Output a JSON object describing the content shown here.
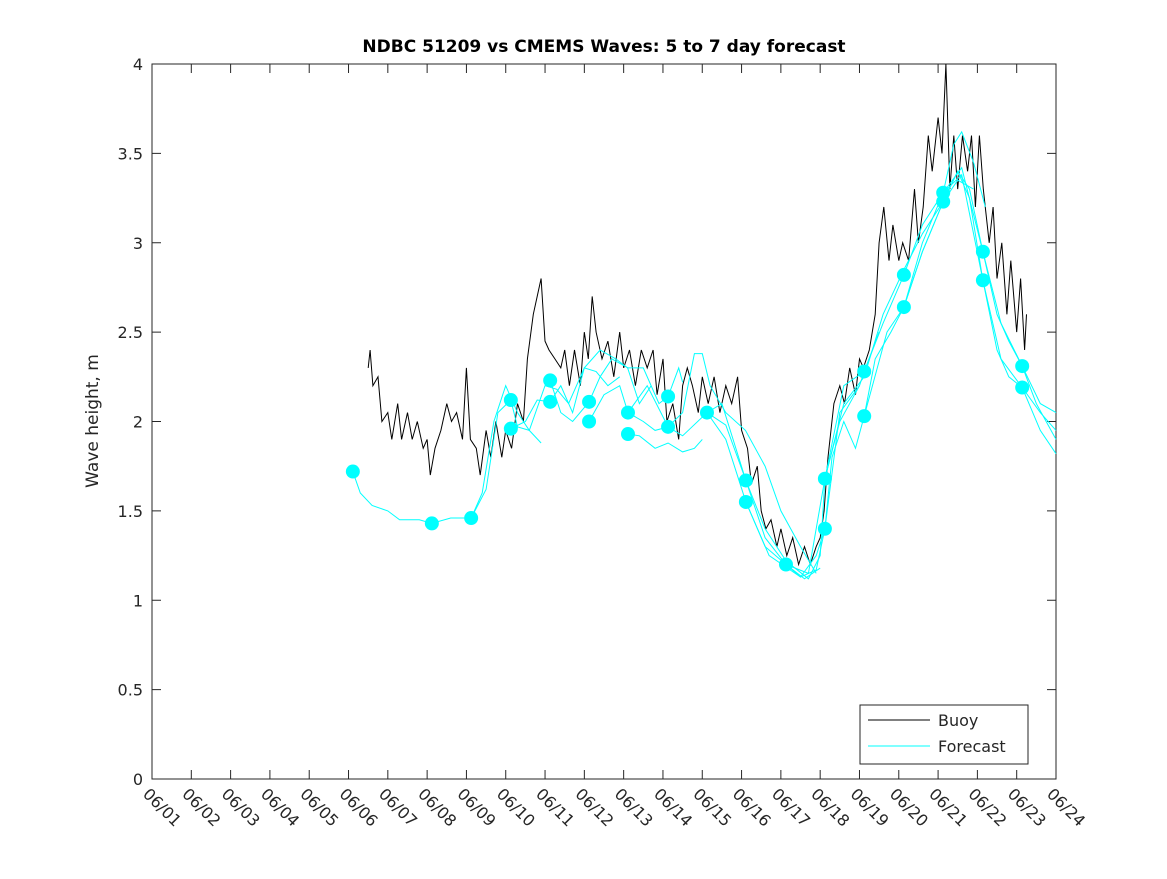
{
  "chart_data": {
    "type": "line",
    "title": "NDBC 51209 vs CMEMS Waves: 5 to 7 day forecast",
    "xlabel": "",
    "ylabel": "Wave height, m",
    "ylim": [
      0,
      4
    ],
    "xlim_days_since_0601": [
      0,
      23
    ],
    "x_ticks": [
      "06/01",
      "06/02",
      "06/03",
      "06/04",
      "06/05",
      "06/06",
      "06/07",
      "06/08",
      "06/09",
      "06/10",
      "06/11",
      "06/12",
      "06/13",
      "06/14",
      "06/15",
      "06/16",
      "06/17",
      "06/18",
      "06/19",
      "06/20",
      "06/21",
      "06/22",
      "06/23",
      "06/24"
    ],
    "y_ticks": [
      "0",
      "0.5",
      "1",
      "1.5",
      "2",
      "2.5",
      "3",
      "3.5",
      "4"
    ],
    "y_tick_values": [
      0,
      0.5,
      1,
      1.5,
      2,
      2.5,
      3,
      3.5,
      4
    ],
    "grid": false,
    "legend": {
      "placement": "bottom-right",
      "entries": [
        "Buoy",
        "Forecast"
      ]
    },
    "colors": {
      "buoy": "#000000",
      "forecast": "#00ffff"
    },
    "buoy": [
      [
        5.5,
        2.3
      ],
      [
        5.55,
        2.4
      ],
      [
        5.62,
        2.2
      ],
      [
        5.75,
        2.25
      ],
      [
        5.85,
        2.0
      ],
      [
        6.0,
        2.05
      ],
      [
        6.1,
        1.9
      ],
      [
        6.25,
        2.1
      ],
      [
        6.35,
        1.9
      ],
      [
        6.5,
        2.05
      ],
      [
        6.62,
        1.9
      ],
      [
        6.75,
        2.0
      ],
      [
        6.9,
        1.85
      ],
      [
        7.0,
        1.9
      ],
      [
        7.08,
        1.7
      ],
      [
        7.2,
        1.85
      ],
      [
        7.35,
        1.95
      ],
      [
        7.5,
        2.1
      ],
      [
        7.62,
        2.0
      ],
      [
        7.75,
        2.05
      ],
      [
        7.9,
        1.9
      ],
      [
        8.0,
        2.3
      ],
      [
        8.1,
        1.9
      ],
      [
        8.25,
        1.85
      ],
      [
        8.35,
        1.7
      ],
      [
        8.5,
        1.95
      ],
      [
        8.62,
        1.8
      ],
      [
        8.75,
        2.0
      ],
      [
        8.9,
        1.8
      ],
      [
        9.0,
        1.95
      ],
      [
        9.15,
        1.85
      ],
      [
        9.3,
        2.1
      ],
      [
        9.45,
        2.0
      ],
      [
        9.55,
        2.35
      ],
      [
        9.7,
        2.6
      ],
      [
        9.8,
        2.7
      ],
      [
        9.9,
        2.8
      ],
      [
        10.0,
        2.45
      ],
      [
        10.1,
        2.4
      ],
      [
        10.25,
        2.35
      ],
      [
        10.4,
        2.3
      ],
      [
        10.5,
        2.4
      ],
      [
        10.62,
        2.2
      ],
      [
        10.75,
        2.4
      ],
      [
        10.9,
        2.2
      ],
      [
        11.0,
        2.5
      ],
      [
        11.1,
        2.35
      ],
      [
        11.2,
        2.7
      ],
      [
        11.3,
        2.5
      ],
      [
        11.45,
        2.35
      ],
      [
        11.6,
        2.45
      ],
      [
        11.75,
        2.25
      ],
      [
        11.9,
        2.5
      ],
      [
        12.0,
        2.3
      ],
      [
        12.15,
        2.4
      ],
      [
        12.3,
        2.2
      ],
      [
        12.45,
        2.4
      ],
      [
        12.6,
        2.3
      ],
      [
        12.75,
        2.4
      ],
      [
        12.85,
        2.15
      ],
      [
        13.0,
        2.35
      ],
      [
        13.1,
        2.0
      ],
      [
        13.25,
        2.1
      ],
      [
        13.4,
        1.9
      ],
      [
        13.5,
        2.2
      ],
      [
        13.62,
        2.3
      ],
      [
        13.75,
        2.2
      ],
      [
        13.9,
        2.05
      ],
      [
        14.0,
        2.25
      ],
      [
        14.15,
        2.1
      ],
      [
        14.3,
        2.25
      ],
      [
        14.45,
        2.05
      ],
      [
        14.6,
        2.2
      ],
      [
        14.75,
        2.1
      ],
      [
        14.9,
        2.25
      ],
      [
        15.0,
        1.95
      ],
      [
        15.15,
        1.85
      ],
      [
        15.25,
        1.65
      ],
      [
        15.4,
        1.75
      ],
      [
        15.5,
        1.5
      ],
      [
        15.62,
        1.4
      ],
      [
        15.75,
        1.45
      ],
      [
        15.9,
        1.3
      ],
      [
        16.0,
        1.4
      ],
      [
        16.15,
        1.25
      ],
      [
        16.3,
        1.35
      ],
      [
        16.45,
        1.2
      ],
      [
        16.6,
        1.3
      ],
      [
        16.75,
        1.2
      ],
      [
        16.9,
        1.3
      ],
      [
        17.0,
        1.35
      ],
      [
        17.1,
        1.5
      ],
      [
        17.2,
        1.8
      ],
      [
        17.35,
        2.1
      ],
      [
        17.5,
        2.2
      ],
      [
        17.62,
        2.1
      ],
      [
        17.75,
        2.3
      ],
      [
        17.9,
        2.15
      ],
      [
        18.0,
        2.35
      ],
      [
        18.1,
        2.3
      ],
      [
        18.25,
        2.4
      ],
      [
        18.4,
        2.6
      ],
      [
        18.5,
        3.0
      ],
      [
        18.62,
        3.2
      ],
      [
        18.75,
        2.9
      ],
      [
        18.85,
        3.1
      ],
      [
        19.0,
        2.9
      ],
      [
        19.1,
        3.0
      ],
      [
        19.25,
        2.9
      ],
      [
        19.4,
        3.3
      ],
      [
        19.5,
        3.0
      ],
      [
        19.62,
        3.2
      ],
      [
        19.75,
        3.6
      ],
      [
        19.85,
        3.4
      ],
      [
        20.0,
        3.7
      ],
      [
        20.1,
        3.5
      ],
      [
        20.2,
        4.0
      ],
      [
        20.3,
        3.3
      ],
      [
        20.4,
        3.6
      ],
      [
        20.5,
        3.3
      ],
      [
        20.62,
        3.6
      ],
      [
        20.75,
        3.4
      ],
      [
        20.85,
        3.6
      ],
      [
        20.95,
        3.2
      ],
      [
        21.05,
        3.6
      ],
      [
        21.15,
        3.3
      ],
      [
        21.3,
        3.0
      ],
      [
        21.4,
        3.2
      ],
      [
        21.5,
        2.8
      ],
      [
        21.62,
        3.0
      ],
      [
        21.75,
        2.6
      ],
      [
        21.85,
        2.9
      ],
      [
        22.0,
        2.5
      ],
      [
        22.1,
        2.8
      ],
      [
        22.2,
        2.4
      ],
      [
        22.25,
        2.6
      ]
    ],
    "forecast_runs": [
      [
        [
          5.11,
          1.72
        ],
        [
          5.3,
          1.6
        ],
        [
          5.6,
          1.53
        ],
        [
          6.0,
          1.5
        ],
        [
          6.3,
          1.45
        ],
        [
          6.8,
          1.45
        ],
        [
          7.12,
          1.43
        ],
        [
          7.6,
          1.46
        ],
        [
          8.12,
          1.46
        ],
        [
          8.4,
          1.6
        ],
        [
          8.7,
          2.0
        ],
        [
          9.0,
          2.2
        ],
        [
          9.3,
          2.05
        ],
        [
          9.6,
          1.95
        ],
        [
          9.9,
          1.88
        ]
      ],
      [
        [
          8.12,
          1.46
        ],
        [
          8.5,
          1.62
        ],
        [
          8.8,
          2.05
        ],
        [
          9.13,
          2.12
        ],
        [
          9.3,
          1.97
        ],
        [
          9.6,
          1.95
        ],
        [
          10.0,
          2.2
        ],
        [
          10.3,
          2.18
        ],
        [
          10.6,
          2.1
        ],
        [
          11.0,
          2.3
        ],
        [
          11.3,
          2.28
        ],
        [
          11.6,
          2.2
        ],
        [
          11.9,
          2.25
        ]
      ],
      [
        [
          9.13,
          1.96
        ],
        [
          9.5,
          2.0
        ],
        [
          9.8,
          2.12
        ],
        [
          10.13,
          2.11
        ],
        [
          10.4,
          2.2
        ],
        [
          10.7,
          2.05
        ],
        [
          11.0,
          2.3
        ],
        [
          11.4,
          2.4
        ],
        [
          11.8,
          2.35
        ],
        [
          12.1,
          2.3
        ],
        [
          12.4,
          2.1
        ],
        [
          12.7,
          2.2
        ]
      ],
      [
        [
          10.13,
          2.23
        ],
        [
          10.4,
          2.05
        ],
        [
          10.7,
          2.0
        ],
        [
          11.12,
          2.11
        ],
        [
          11.4,
          2.25
        ],
        [
          11.7,
          2.35
        ],
        [
          12.11,
          2.3
        ],
        [
          12.5,
          2.3
        ],
        [
          12.9,
          2.1
        ],
        [
          13.13,
          2.14
        ],
        [
          13.4,
          2.3
        ],
        [
          13.5,
          2.22
        ]
      ],
      [
        [
          11.12,
          2.0
        ],
        [
          11.5,
          2.15
        ],
        [
          11.9,
          2.2
        ],
        [
          12.11,
          2.05
        ],
        [
          12.6,
          2.2
        ],
        [
          13.13,
          1.97
        ],
        [
          13.5,
          2.05
        ],
        [
          13.8,
          2.38
        ],
        [
          14.0,
          2.38
        ],
        [
          14.2,
          2.2
        ],
        [
          14.6,
          2.05
        ],
        [
          15.1,
          1.95
        ],
        [
          15.6,
          1.75
        ],
        [
          16.0,
          1.5
        ],
        [
          16.5,
          1.3
        ],
        [
          16.9,
          1.15
        ]
      ],
      [
        [
          12.11,
          1.93
        ],
        [
          12.4,
          1.92
        ],
        [
          12.8,
          1.85
        ],
        [
          13.13,
          1.88
        ],
        [
          13.5,
          1.83
        ],
        [
          13.8,
          1.85
        ],
        [
          14.0,
          1.9
        ]
      ],
      [
        [
          12.11,
          2.05
        ],
        [
          12.5,
          2.0
        ],
        [
          12.8,
          1.95
        ],
        [
          13.13,
          1.97
        ],
        [
          13.5,
          1.92
        ],
        [
          14.12,
          2.05
        ],
        [
          14.5,
          2.1
        ],
        [
          15.11,
          1.67
        ],
        [
          15.6,
          1.35
        ],
        [
          16.13,
          1.2
        ],
        [
          16.6,
          1.12
        ],
        [
          17.0,
          1.18
        ]
      ],
      [
        [
          14.12,
          2.05
        ],
        [
          14.6,
          1.9
        ],
        [
          15.11,
          1.55
        ],
        [
          15.6,
          1.3
        ],
        [
          16.13,
          1.2
        ],
        [
          16.5,
          1.13
        ],
        [
          16.9,
          1.17
        ],
        [
          17.12,
          1.4
        ],
        [
          17.5,
          2.05
        ],
        [
          18.0,
          2.2
        ]
      ],
      [
        [
          14.12,
          2.05
        ],
        [
          14.6,
          1.98
        ],
        [
          15.11,
          1.67
        ],
        [
          15.6,
          1.4
        ],
        [
          16.13,
          1.22
        ],
        [
          16.7,
          1.12
        ],
        [
          17.0,
          1.25
        ],
        [
          17.12,
          1.68
        ],
        [
          17.5,
          2.0
        ],
        [
          18.0,
          2.2
        ],
        [
          18.12,
          2.28
        ],
        [
          18.5,
          2.5
        ]
      ],
      [
        [
          15.11,
          1.55
        ],
        [
          15.7,
          1.25
        ],
        [
          16.5,
          1.13
        ],
        [
          16.9,
          1.25
        ],
        [
          17.12,
          1.4
        ],
        [
          17.3,
          1.8
        ],
        [
          17.6,
          2.0
        ],
        [
          17.9,
          1.85
        ],
        [
          18.12,
          2.03
        ],
        [
          18.4,
          2.35
        ],
        [
          18.8,
          2.5
        ],
        [
          19.13,
          2.64
        ],
        [
          19.6,
          2.95
        ],
        [
          20.13,
          3.23
        ],
        [
          20.5,
          3.35
        ],
        [
          20.9,
          3.3
        ]
      ],
      [
        [
          16.13,
          1.2
        ],
        [
          16.7,
          1.15
        ],
        [
          17.12,
          1.68
        ],
        [
          17.6,
          2.2
        ],
        [
          18.12,
          2.28
        ],
        [
          18.6,
          2.55
        ],
        [
          19.13,
          2.82
        ],
        [
          19.6,
          3.1
        ],
        [
          20.13,
          3.28
        ],
        [
          20.4,
          3.55
        ],
        [
          20.6,
          3.62
        ],
        [
          20.9,
          3.45
        ],
        [
          21.2,
          3.2
        ]
      ],
      [
        [
          17.12,
          1.68
        ],
        [
          17.6,
          2.1
        ],
        [
          18.12,
          2.25
        ],
        [
          18.6,
          2.6
        ],
        [
          19.13,
          2.85
        ],
        [
          19.6,
          3.05
        ],
        [
          20.13,
          3.23
        ],
        [
          20.5,
          3.4
        ],
        [
          20.8,
          3.3
        ],
        [
          21.14,
          2.95
        ],
        [
          21.5,
          2.6
        ],
        [
          21.8,
          2.45
        ],
        [
          22.14,
          2.31
        ],
        [
          22.6,
          2.1
        ],
        [
          23.0,
          2.05
        ]
      ],
      [
        [
          18.12,
          2.03
        ],
        [
          18.7,
          2.5
        ],
        [
          19.13,
          2.64
        ],
        [
          19.6,
          2.95
        ],
        [
          20.13,
          3.23
        ],
        [
          20.5,
          3.4
        ],
        [
          20.8,
          3.25
        ],
        [
          21.14,
          2.79
        ],
        [
          21.5,
          2.4
        ],
        [
          21.8,
          2.25
        ],
        [
          22.14,
          2.19
        ],
        [
          22.6,
          1.95
        ],
        [
          23.0,
          1.82
        ]
      ],
      [
        [
          19.13,
          2.64
        ],
        [
          19.6,
          3.0
        ],
        [
          20.13,
          3.28
        ],
        [
          20.6,
          3.42
        ],
        [
          21.14,
          2.95
        ],
        [
          21.6,
          2.55
        ],
        [
          22.14,
          2.31
        ],
        [
          22.5,
          2.1
        ],
        [
          23.0,
          1.9
        ]
      ],
      [
        [
          20.13,
          3.28
        ],
        [
          20.6,
          3.38
        ],
        [
          21.14,
          2.79
        ],
        [
          21.6,
          2.35
        ],
        [
          22.14,
          2.19
        ],
        [
          22.6,
          2.05
        ],
        [
          23.0,
          1.95
        ]
      ]
    ],
    "forecast_markers": [
      [
        5.11,
        1.72
      ],
      [
        7.12,
        1.43
      ],
      [
        8.12,
        1.46
      ],
      [
        9.13,
        2.12
      ],
      [
        9.13,
        1.96
      ],
      [
        10.13,
        2.23
      ],
      [
        10.13,
        2.11
      ],
      [
        11.12,
        2.11
      ],
      [
        11.12,
        2.0
      ],
      [
        12.11,
        2.05
      ],
      [
        12.11,
        1.93
      ],
      [
        13.13,
        2.14
      ],
      [
        13.13,
        1.97
      ],
      [
        14.12,
        2.05
      ],
      [
        15.11,
        1.67
      ],
      [
        15.11,
        1.55
      ],
      [
        16.13,
        1.2
      ],
      [
        17.12,
        1.68
      ],
      [
        17.12,
        1.4
      ],
      [
        18.12,
        2.28
      ],
      [
        18.12,
        2.03
      ],
      [
        19.13,
        2.82
      ],
      [
        19.13,
        2.64
      ],
      [
        20.13,
        3.28
      ],
      [
        20.13,
        3.23
      ],
      [
        21.14,
        2.95
      ],
      [
        21.14,
        2.79
      ],
      [
        22.14,
        2.31
      ],
      [
        22.14,
        2.19
      ]
    ]
  }
}
